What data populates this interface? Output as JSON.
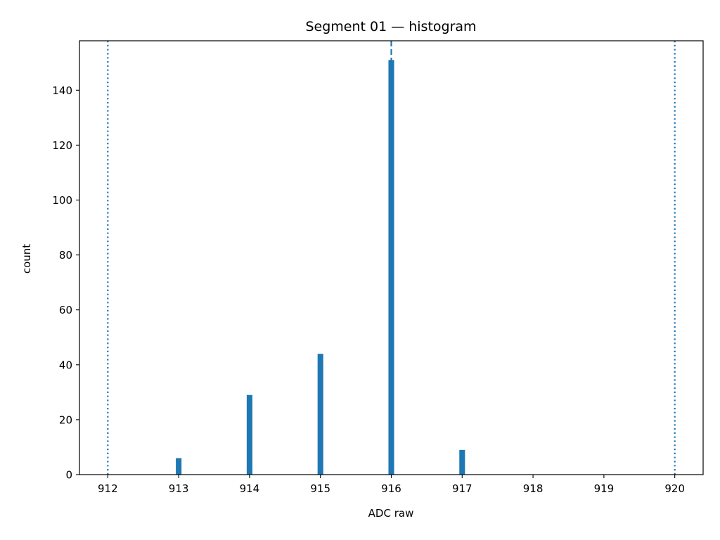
{
  "chart_data": {
    "type": "bar",
    "title": "Segment 01 — histogram",
    "xlabel": "ADC raw",
    "ylabel": "count",
    "xlim": [
      911.6,
      920.4
    ],
    "ylim": [
      0,
      158
    ],
    "xticks": [
      912,
      913,
      914,
      915,
      916,
      917,
      918,
      919,
      920
    ],
    "yticks": [
      0,
      20,
      40,
      60,
      80,
      100,
      120,
      140
    ],
    "bars": [
      {
        "x": 913,
        "count": 6
      },
      {
        "x": 914,
        "count": 29
      },
      {
        "x": 915,
        "count": 44
      },
      {
        "x": 916,
        "count": 151
      },
      {
        "x": 917,
        "count": 9
      }
    ],
    "bar_width": 0.08,
    "reference_lines": [
      {
        "x": 912,
        "style": "dotted"
      },
      {
        "x": 916,
        "style": "dashed"
      },
      {
        "x": 920,
        "style": "dotted"
      }
    ],
    "grid": false,
    "bar_color": "#1f77b4",
    "line_color": "#1f77b4"
  }
}
